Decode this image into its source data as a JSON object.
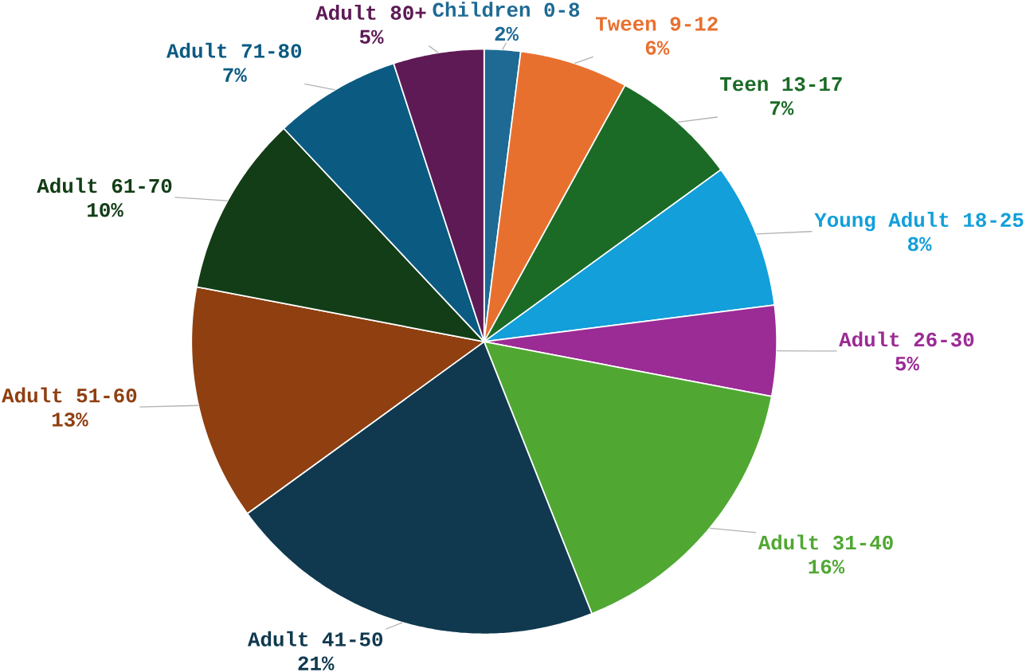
{
  "chart_data": {
    "type": "pie",
    "categories": [
      "Children 0-8",
      "Tween 9-12",
      "Teen 13-17",
      "Young Adult 18-25",
      "Adult 26-30",
      "Adult 31-40",
      "Adult 41-50",
      "Adult 51-60",
      "Adult 61-70",
      "Adult 71-80",
      "Adult 80+"
    ],
    "values": [
      2,
      6,
      7,
      8,
      5,
      16,
      21,
      13,
      10,
      7,
      5
    ],
    "value_labels": [
      "2%",
      "6%",
      "7%",
      "8%",
      "5%",
      "16%",
      "21%",
      "13%",
      "10%",
      "7%",
      "5%"
    ],
    "colors": [
      "#1e6a94",
      "#e8702f",
      "#1b6b27",
      "#129fda",
      "#9b2b95",
      "#50a833",
      "#10394f",
      "#8f3f10",
      "#133d16",
      "#0b5a82",
      "#5e1a55"
    ]
  }
}
